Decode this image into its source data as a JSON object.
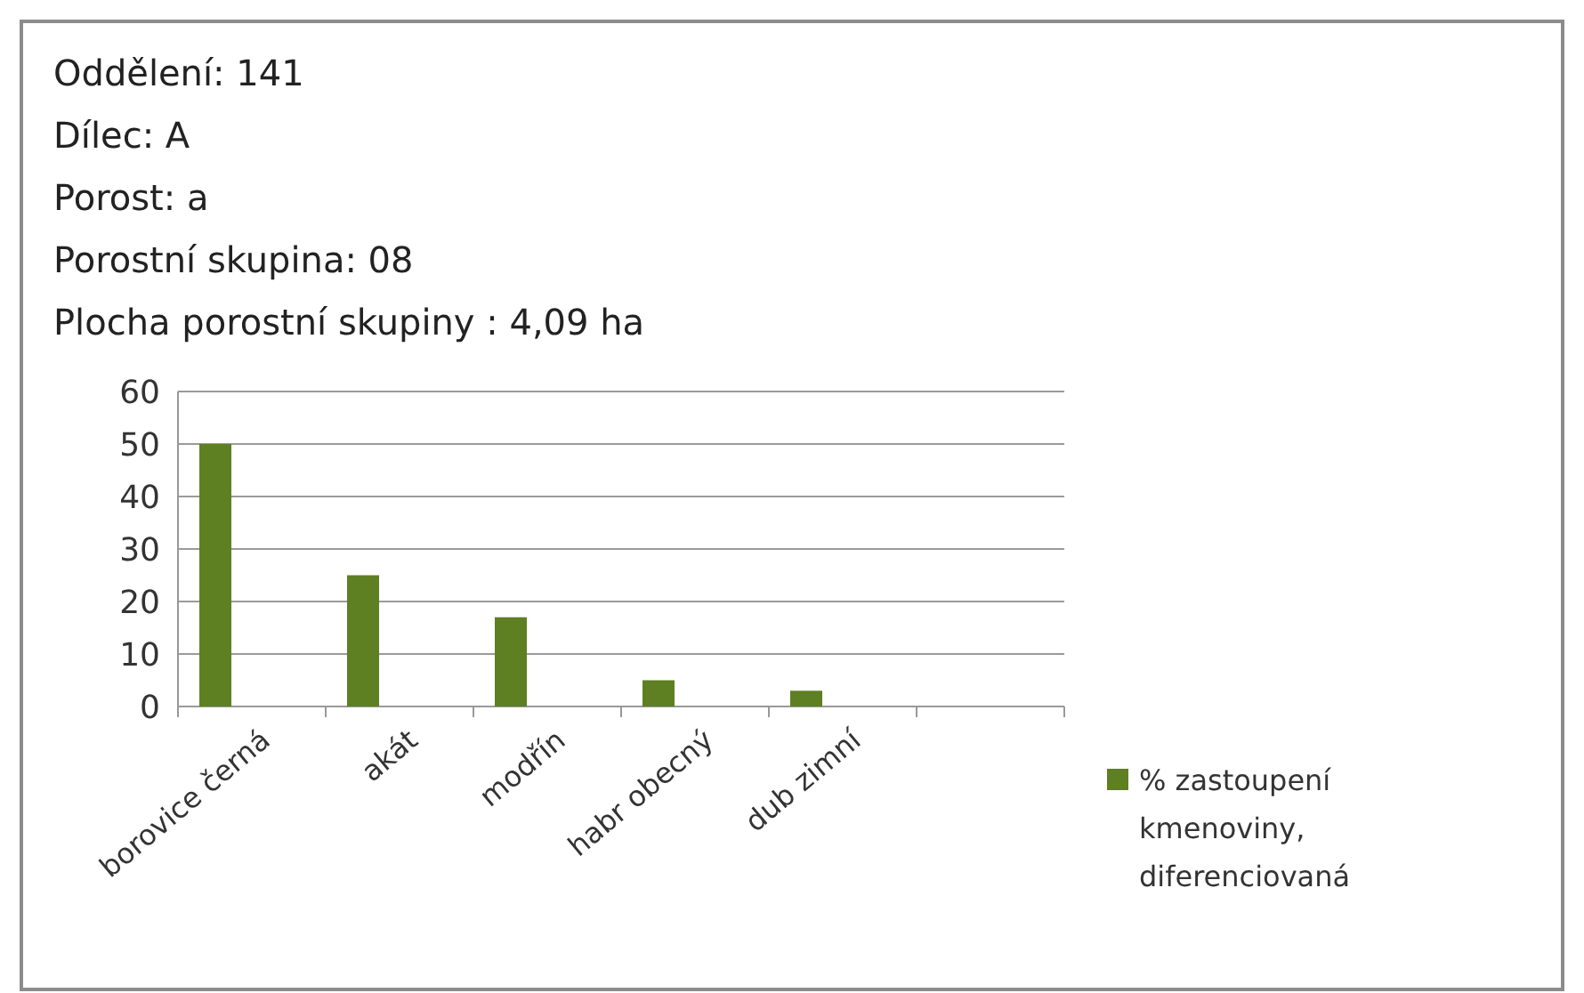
{
  "chart_data": {
    "type": "bar",
    "title": "Oddělení: 141",
    "annotations": [
      "Dílec: A",
      "Porost: a",
      "Porostní skupina:  08",
      "Plocha porostní skupiny : 4,09 ha"
    ],
    "categories": [
      "borovice černá",
      "akát",
      "modřín",
      "habr obecný",
      "dub zimní",
      null
    ],
    "series": [
      {
        "name": "% zastoupení kmenoviny, diferenciovaná",
        "color": "#5e7f22",
        "values": [
          50,
          25,
          17,
          5,
          3,
          null
        ]
      }
    ],
    "ylim": [
      0,
      60
    ],
    "yticks": [
      0,
      10,
      20,
      30,
      40,
      50,
      60
    ],
    "grid": "y",
    "legend": "right"
  }
}
